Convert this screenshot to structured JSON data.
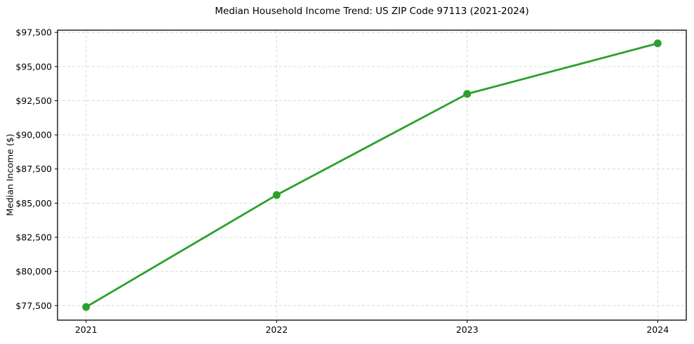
{
  "chart_data": {
    "type": "line",
    "title": "Median Household Income Trend: US ZIP Code 97113 (2021-2024)",
    "xlabel": "",
    "ylabel": "Median Income ($)",
    "x": [
      2021,
      2022,
      2023,
      2024
    ],
    "values": [
      77400,
      85600,
      93000,
      96700
    ],
    "series": [
      {
        "name": "Median Household Income",
        "values": [
          77400,
          85600,
          93000,
          96700
        ]
      }
    ],
    "xticks": [
      {
        "value": 2021,
        "label": "2021"
      },
      {
        "value": 2022,
        "label": "2022"
      },
      {
        "value": 2023,
        "label": "2023"
      },
      {
        "value": 2024,
        "label": "2024"
      }
    ],
    "yticks": [
      {
        "value": 77500,
        "label": "$77,500"
      },
      {
        "value": 80000,
        "label": "$80,000"
      },
      {
        "value": 82500,
        "label": "$82,500"
      },
      {
        "value": 85000,
        "label": "$85,000"
      },
      {
        "value": 87500,
        "label": "$87,500"
      },
      {
        "value": 90000,
        "label": "$90,000"
      },
      {
        "value": 92500,
        "label": "$92,500"
      },
      {
        "value": 95000,
        "label": "$95,000"
      },
      {
        "value": 97500,
        "label": "$97,500"
      }
    ],
    "xlim": [
      2020.85,
      2024.15
    ],
    "ylim": [
      76435,
      97665
    ],
    "grid": true,
    "grid_style": "dashed",
    "legend": "none",
    "line_color": "#2ca02c",
    "marker_color": "#2ca02c",
    "grid_color": "#d9d9d9",
    "spine_color": "#000000",
    "text_color": "#000000",
    "background": "#ffffff"
  }
}
